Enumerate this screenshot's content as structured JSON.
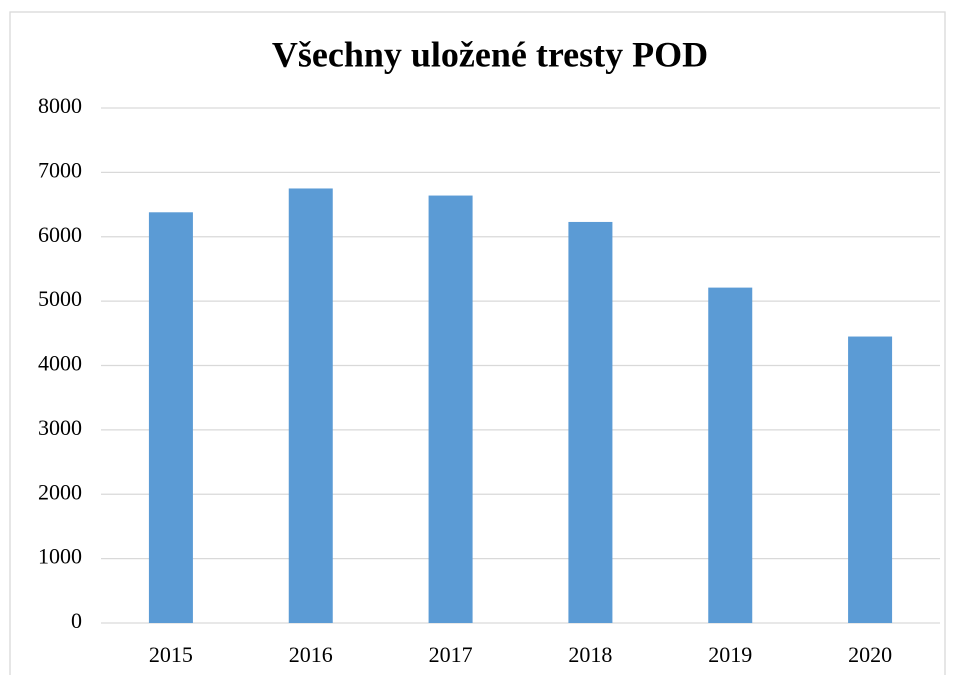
{
  "chart_data": {
    "type": "bar",
    "title": "Všechny uložené tresty POD",
    "categories": [
      "2015",
      "2016",
      "2017",
      "2018",
      "2019",
      "2020"
    ],
    "values": [
      6380,
      6750,
      6640,
      6230,
      5210,
      4450
    ],
    "color": "#5b9bd5",
    "ylim": [
      0,
      8000
    ],
    "yticks": [
      0,
      1000,
      2000,
      3000,
      4000,
      5000,
      6000,
      7000,
      8000
    ],
    "grid": true
  }
}
